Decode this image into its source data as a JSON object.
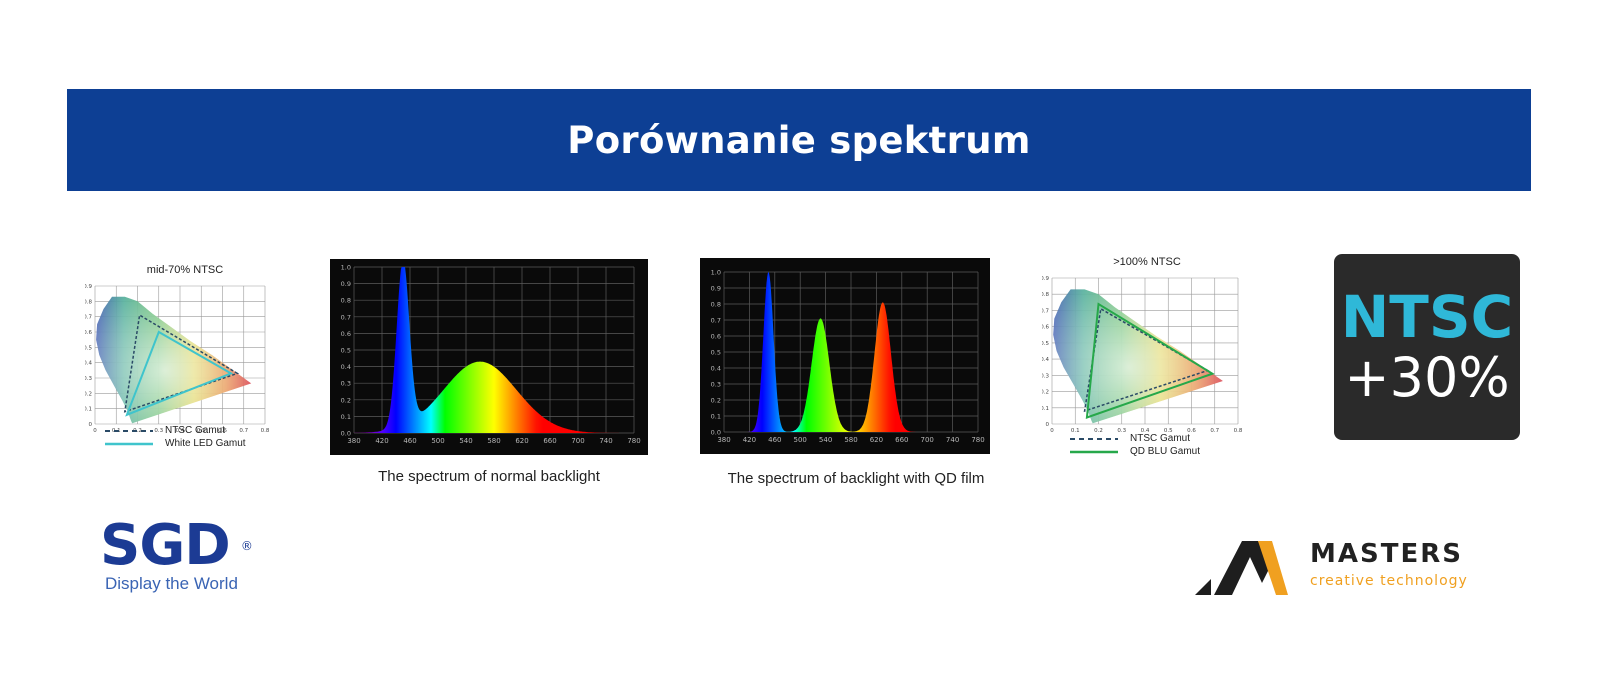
{
  "banner": {
    "title": "Porównanie spektrum",
    "color": "#0d3f94"
  },
  "cie_left": {
    "title": "mid-70% NTSC",
    "legend": [
      {
        "label": "NTSC Gamut",
        "style": "dashed",
        "color": "#2a4a66"
      },
      {
        "label": "White LED Gamut",
        "style": "solid",
        "color": "#3fc4cc"
      }
    ]
  },
  "cie_right": {
    "title": ">100% NTSC",
    "legend": [
      {
        "label": "NTSC Gamut",
        "style": "dashed",
        "color": "#2a4a66"
      },
      {
        "label": "QD BLU Gamut",
        "style": "solid",
        "color": "#26a84a"
      }
    ]
  },
  "spectrum_left": {
    "caption": "The spectrum of normal backlight"
  },
  "spectrum_right": {
    "caption": "The spectrum of backlight with QD film"
  },
  "ntsc_badge": {
    "line1": "NTSC",
    "line2": "+30%",
    "bg": "#2a2a2a",
    "accent": "#2fb8d8",
    "text": "#ffffff"
  },
  "sgd_logo": {
    "name": "SGD",
    "reg": "®",
    "tagline": "Display the World",
    "color": "#1c3b94",
    "tag_color": "#3a64b4"
  },
  "masters_logo": {
    "name": "MASTERS",
    "tagline": "creative technology",
    "accent": "#f0a020"
  },
  "chart_data": [
    {
      "type": "scatter",
      "title": "mid-70% NTSC",
      "x_ticks": [
        "0",
        "0.1",
        "0.2",
        "0.3",
        "0.4",
        "0.5",
        "0.6",
        "0.7",
        "0.8"
      ],
      "y_ticks": [
        "0",
        "0.1",
        "0.2",
        "0.3",
        "0.4",
        "0.5",
        "0.6",
        "0.7",
        "0.8",
        "0.9"
      ],
      "xlim": [
        0,
        0.8
      ],
      "ylim": [
        0,
        0.9
      ],
      "series": [
        {
          "name": "NTSC Gamut",
          "points": [
            [
              0.67,
              0.33
            ],
            [
              0.21,
              0.71
            ],
            [
              0.14,
              0.08
            ]
          ]
        },
        {
          "name": "White LED Gamut",
          "points": [
            [
              0.64,
              0.33
            ],
            [
              0.3,
              0.6
            ],
            [
              0.15,
              0.06
            ]
          ]
        }
      ]
    },
    {
      "type": "area",
      "x_ticks": [
        "380",
        "420",
        "460",
        "500",
        "540",
        "580",
        "620",
        "660",
        "700",
        "740",
        "780"
      ],
      "y_ticks": [
        "0.0",
        "0.1",
        "0.2",
        "0.3",
        "0.4",
        "0.5",
        "0.6",
        "0.7",
        "0.8",
        "0.9",
        "1.0"
      ],
      "xlim": [
        380,
        780
      ],
      "ylim": [
        0,
        1.0
      ],
      "peaks": [
        {
          "center": 450,
          "height": 1.0,
          "width": 9
        },
        {
          "center": 560,
          "height": 0.43,
          "width": 52
        }
      ],
      "caption": "The spectrum of normal backlight"
    },
    {
      "type": "area",
      "x_ticks": [
        "380",
        "420",
        "460",
        "500",
        "540",
        "580",
        "620",
        "660",
        "700",
        "740",
        "780"
      ],
      "y_ticks": [
        "0.0",
        "0.1",
        "0.2",
        "0.3",
        "0.4",
        "0.5",
        "0.6",
        "0.7",
        "0.8",
        "0.9",
        "1.0"
      ],
      "xlim": [
        380,
        780
      ],
      "ylim": [
        0,
        1.0
      ],
      "peaks": [
        {
          "center": 450,
          "height": 1.0,
          "width": 8
        },
        {
          "center": 532,
          "height": 0.71,
          "width": 14
        },
        {
          "center": 630,
          "height": 0.81,
          "width": 13
        }
      ],
      "caption": "The spectrum of backlight with QD film"
    },
    {
      "type": "scatter",
      "title": ">100% NTSC",
      "x_ticks": [
        "0",
        "0.1",
        "0.2",
        "0.3",
        "0.4",
        "0.5",
        "0.6",
        "0.7",
        "0.8"
      ],
      "y_ticks": [
        "0",
        "0.1",
        "0.2",
        "0.3",
        "0.4",
        "0.5",
        "0.6",
        "0.7",
        "0.8",
        "0.9"
      ],
      "xlim": [
        0,
        0.8
      ],
      "ylim": [
        0,
        0.9
      ],
      "series": [
        {
          "name": "NTSC Gamut",
          "points": [
            [
              0.67,
              0.33
            ],
            [
              0.21,
              0.71
            ],
            [
              0.14,
              0.08
            ]
          ]
        },
        {
          "name": "QD BLU Gamut",
          "points": [
            [
              0.69,
              0.31
            ],
            [
              0.2,
              0.74
            ],
            [
              0.15,
              0.04
            ]
          ]
        }
      ]
    }
  ]
}
